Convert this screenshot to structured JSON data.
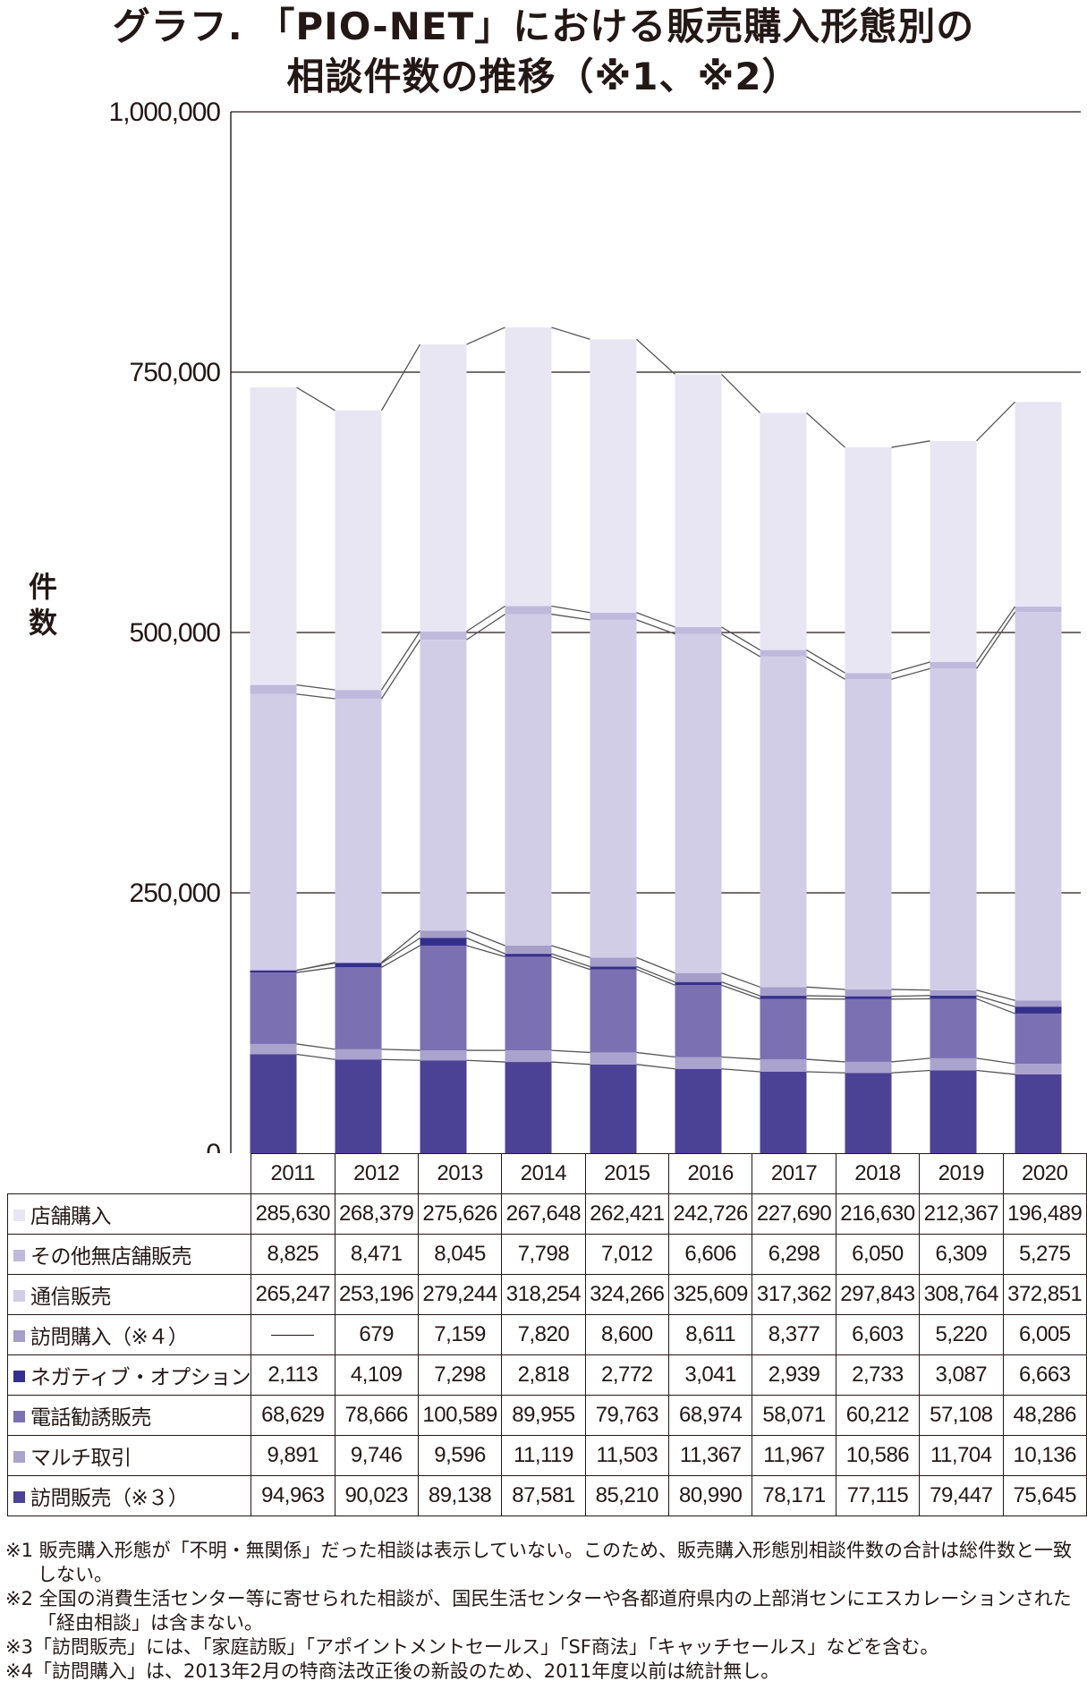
{
  "title_line1": "グラフ. 「PIO-NET」における販売購入形態別の",
  "title_line2": "相談件数の推移（※1、※2）",
  "y_axis_title": "件数",
  "chart_data": {
    "type": "bar",
    "stacked": true,
    "categories": [
      "2011",
      "2012",
      "2013",
      "2014",
      "2015",
      "2016",
      "2017",
      "2018",
      "2019",
      "2020"
    ],
    "ylim": [
      0,
      1000000
    ],
    "y_ticks": [
      0,
      250000,
      500000,
      750000,
      1000000
    ],
    "y_tick_labels": [
      "0",
      "250,000",
      "500,000",
      "750,000",
      "1,000,000"
    ],
    "grid": true,
    "series": [
      {
        "name": "訪問販売（※３）",
        "color": "#4b4296",
        "values": [
          94963,
          90023,
          89138,
          87581,
          85210,
          80990,
          78171,
          77115,
          79447,
          75645
        ]
      },
      {
        "name": "マルチ取引",
        "color": "#a9a3cd",
        "values": [
          9891,
          9746,
          9596,
          11119,
          11503,
          11367,
          11967,
          10586,
          11704,
          10136
        ]
      },
      {
        "name": "電話勧誘販売",
        "color": "#7b71b2",
        "values": [
          68629,
          78666,
          100589,
          89955,
          79763,
          68974,
          58071,
          60212,
          57108,
          48286
        ]
      },
      {
        "name": "ネガティブ・オプション",
        "color": "#352f8c",
        "values": [
          2113,
          4109,
          7298,
          2818,
          2772,
          3041,
          2939,
          2733,
          3087,
          6663
        ]
      },
      {
        "name": "訪問購入（※４）",
        "color": "#a49ec9",
        "values": [
          null,
          679,
          7159,
          7820,
          8600,
          8611,
          8377,
          6603,
          5220,
          6005
        ]
      },
      {
        "name": "通信販売",
        "color": "#d2cde6",
        "values": [
          265247,
          253196,
          279244,
          318254,
          324266,
          325609,
          317362,
          297843,
          308764,
          372851
        ]
      },
      {
        "name": "その他無店舗販売",
        "color": "#bfbadc",
        "values": [
          8825,
          8471,
          8045,
          7798,
          7012,
          6606,
          6298,
          6050,
          6309,
          5275
        ]
      },
      {
        "name": "店舗購入",
        "color": "#e8e6f3",
        "values": [
          285630,
          268379,
          275626,
          267648,
          262421,
          242726,
          227690,
          216630,
          212367,
          196489
        ]
      }
    ]
  },
  "table": {
    "years": [
      "2011",
      "2012",
      "2013",
      "2014",
      "2015",
      "2016",
      "2017",
      "2018",
      "2019",
      "2020"
    ],
    "rows": [
      {
        "label": "店舗購入",
        "color": "#e8e6f3",
        "values": [
          "285,630",
          "268,379",
          "275,626",
          "267,648",
          "262,421",
          "242,726",
          "227,690",
          "216,630",
          "212,367",
          "196,489"
        ]
      },
      {
        "label": "その他無店舗販売",
        "color": "#bfbadc",
        "values": [
          "8,825",
          "8,471",
          "8,045",
          "7,798",
          "7,012",
          "6,606",
          "6,298",
          "6,050",
          "6,309",
          "5,275"
        ]
      },
      {
        "label": "通信販売",
        "color": "#d2cde6",
        "values": [
          "265,247",
          "253,196",
          "279,244",
          "318,254",
          "324,266",
          "325,609",
          "317,362",
          "297,843",
          "308,764",
          "372,851"
        ]
      },
      {
        "label": "訪問購入（※４）",
        "color": "#a49ec9",
        "values": [
          "",
          "679",
          "7,159",
          "7,820",
          "8,600",
          "8,611",
          "8,377",
          "6,603",
          "5,220",
          "6,005"
        ]
      },
      {
        "label": "ネガティブ・オプション",
        "color": "#352f8c",
        "values": [
          "2,113",
          "4,109",
          "7,298",
          "2,818",
          "2,772",
          "3,041",
          "2,939",
          "2,733",
          "3,087",
          "6,663"
        ]
      },
      {
        "label": "電話勧誘販売",
        "color": "#7b71b2",
        "values": [
          "68,629",
          "78,666",
          "100,589",
          "89,955",
          "79,763",
          "68,974",
          "58,071",
          "60,212",
          "57,108",
          "48,286"
        ]
      },
      {
        "label": "マルチ取引",
        "color": "#a9a3cd",
        "values": [
          "9,891",
          "9,746",
          "9,596",
          "11,119",
          "11,503",
          "11,367",
          "11,967",
          "10,586",
          "11,704",
          "10,136"
        ]
      },
      {
        "label": "訪問販売（※３）",
        "color": "#4b4296",
        "values": [
          "94,963",
          "90,023",
          "89,138",
          "87,581",
          "85,210",
          "80,990",
          "78,171",
          "77,115",
          "79,447",
          "75,645"
        ]
      }
    ]
  },
  "notes": [
    "※1 販売購入形態が「不明・無関係」だった相談は表示していない。このため、販売購入形態別相談件数の合計は総件数と一致しない。",
    "※2 全国の消費生活センター等に寄せられた相談が、国民生活センターや各都道府県内の上部消センにエスカレーションされた「経由相談」は含まない。",
    "※3「訪問販売」には、「家庭訪販」「アポイントメントセールス」「SF商法」「キャッチセールス」などを含む。",
    "※4「訪問購入」は、2013年2月の特商法改正後の新設のため、2011年度以前は統計無し。"
  ]
}
